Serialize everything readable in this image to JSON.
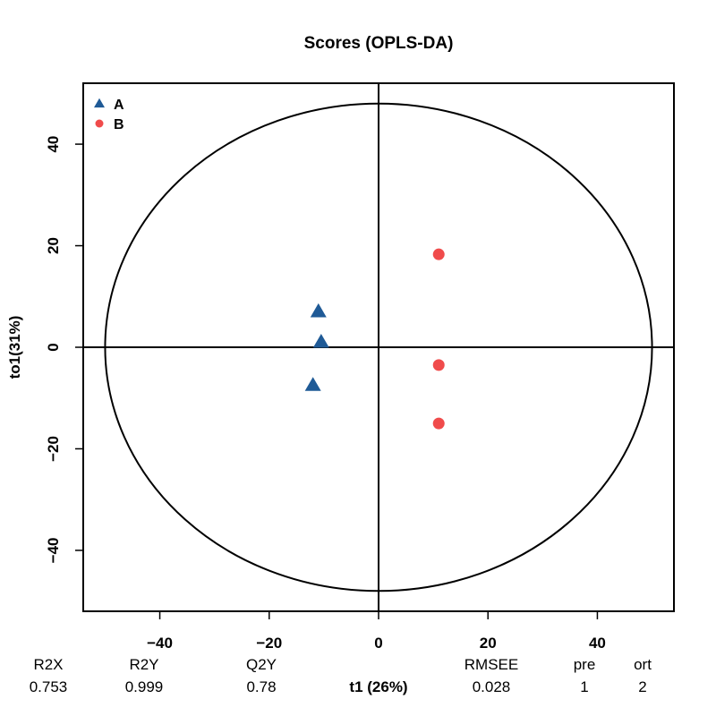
{
  "chart_data": {
    "type": "scatter",
    "title": "Scores (OPLS-DA)",
    "xlabel": "t1 (26%)",
    "ylabel": "to1(31%)",
    "xlim": [
      -54,
      54
    ],
    "ylim": [
      -52,
      52
    ],
    "xticks": [
      -40,
      -20,
      0,
      20,
      40
    ],
    "yticks": [
      -40,
      -20,
      0,
      20,
      40
    ],
    "xtick_labels": [
      "−40",
      "−20",
      "0",
      "20",
      "40"
    ],
    "ytick_labels": [
      "−40",
      "−20",
      "0",
      "20",
      "40"
    ],
    "ellipse": {
      "cx": 0,
      "cy": 0,
      "rx": 50,
      "ry": 48
    },
    "legend_position": "top-left",
    "series": [
      {
        "name": "A",
        "marker": "triangle",
        "color": "#1f5a96",
        "points": [
          {
            "x": -11,
            "y": 7
          },
          {
            "x": -10.5,
            "y": 1
          },
          {
            "x": -12,
            "y": -7.5
          }
        ]
      },
      {
        "name": "B",
        "marker": "circle",
        "color": "#f04b4b",
        "points": [
          {
            "x": 11,
            "y": 18.3
          },
          {
            "x": 11,
            "y": -3.5
          },
          {
            "x": 11,
            "y": -15
          }
        ]
      }
    ],
    "metrics": [
      {
        "label": "R2X",
        "value": "0.753"
      },
      {
        "label": "R2Y",
        "value": "0.999"
      },
      {
        "label": "Q2Y",
        "value": "0.78"
      },
      {
        "label": "RMSEE",
        "value": "0.028"
      },
      {
        "label": "pre",
        "value": "1"
      },
      {
        "label": "ort",
        "value": "2"
      }
    ]
  }
}
